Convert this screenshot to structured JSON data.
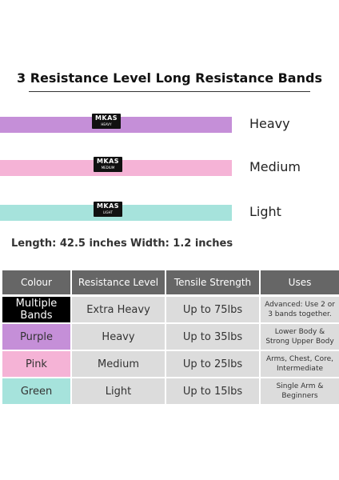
{
  "header": {
    "title": "3 Resistance Level Long Resistance Bands"
  },
  "bands": [
    {
      "brand": "MKAS",
      "tag": "HEAVY",
      "name": "Heavy"
    },
    {
      "brand": "MKAS",
      "tag": "MEDIUM",
      "name": "Medium"
    },
    {
      "brand": "MKAS",
      "tag": "LIGHT",
      "name": "Light"
    }
  ],
  "size": {
    "length": "Length: 42.5 inches",
    "width": "Width: 1.2 inches"
  },
  "table": {
    "header": [
      "Colour",
      "Resistance Level",
      "Tensile Strength",
      "Uses"
    ],
    "rows": [
      [
        "Multiple Bands",
        "Extra Heavy",
        "Up to 75lbs",
        "Advanced: Use 2 or 3 bands together."
      ],
      [
        "Purple",
        "Heavy",
        "Up to 35lbs",
        "Lower Body & Strong Upper Body"
      ],
      [
        "Pink",
        "Medium",
        "Up to 25lbs",
        "Arms, Chest, Core, Intermediate"
      ],
      [
        "Green",
        "Light",
        "Up to 15lbs",
        "Single Arm & Beginners"
      ]
    ]
  }
}
